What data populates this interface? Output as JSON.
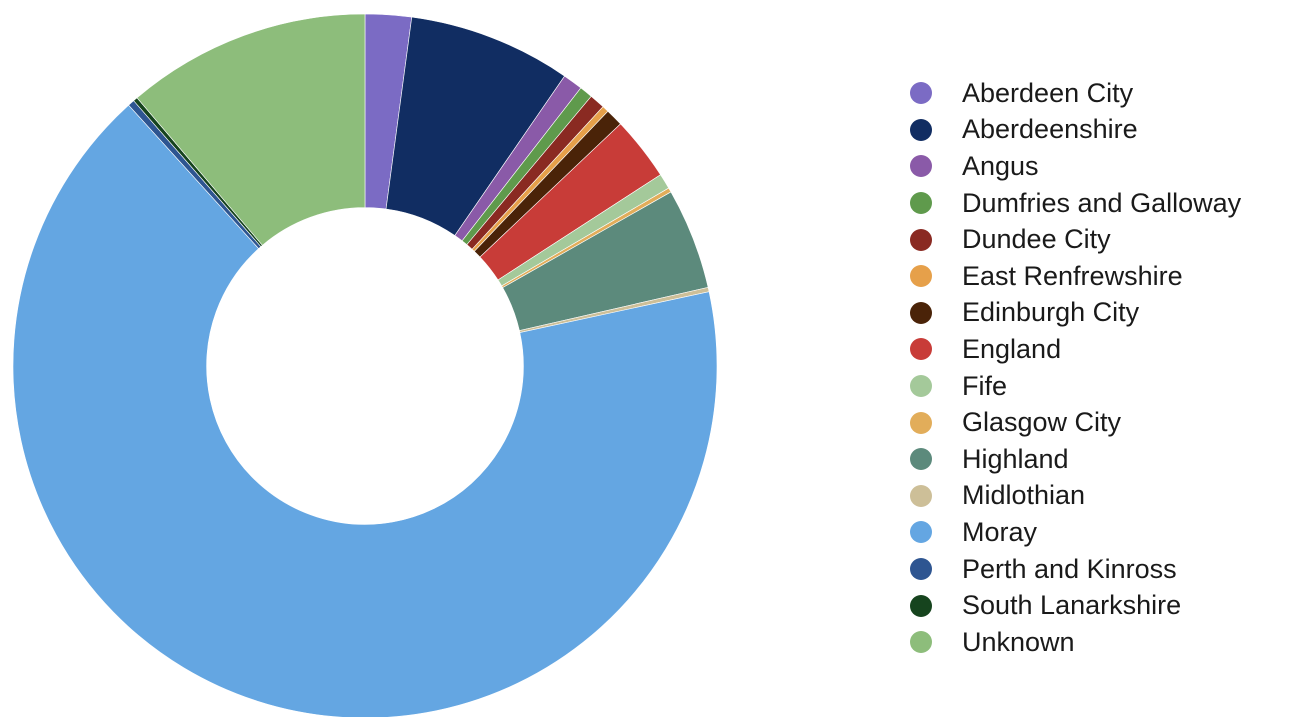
{
  "chart_data": {
    "type": "pie",
    "title": "",
    "legend_position": "right",
    "categories": [
      "Aberdeen City",
      "Aberdeenshire",
      "Angus",
      "Dumfries and Galloway",
      "Dundee City",
      "East Renfrewshire",
      "Edinburgh City",
      "England",
      "Fife",
      "Glasgow City",
      "Highland",
      "Midlothian",
      "Moray",
      "Perth and Kinross",
      "South Lanarkshire",
      "Unknown"
    ],
    "values": [
      2.1,
      7.4,
      0.9,
      0.6,
      0.7,
      0.3,
      0.8,
      2.9,
      0.7,
      0.2,
      4.6,
      0.2,
      66.0,
      0.3,
      0.2,
      11.1
    ],
    "colors": [
      "#7b6bc4",
      "#112d62",
      "#8a5aa8",
      "#5f9a4c",
      "#8a2a22",
      "#e6a04a",
      "#4a2308",
      "#c83c38",
      "#a4c99a",
      "#e2ad5a",
      "#5c8a7c",
      "#cdbf98",
      "#64a6e2",
      "#2e5591",
      "#16441e",
      "#8dbd7b"
    ],
    "donut_hole_ratio": 0.45
  }
}
